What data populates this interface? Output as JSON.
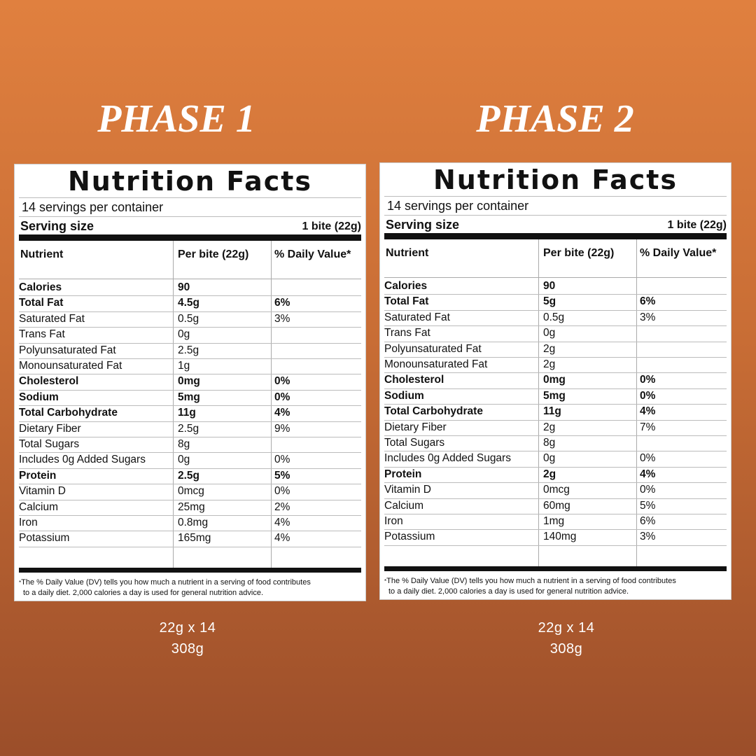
{
  "panels": [
    {
      "title": "PHASE 1",
      "label": {
        "heading": "Nutrition Facts",
        "servings": "14 servings per container",
        "serving_size_label": "Serving size",
        "serving_size_value": "1 bite (22g)",
        "columns": [
          "Nutrient",
          "Per bite (22g)",
          "% Daily Value*"
        ],
        "rows": [
          {
            "name": "Calories",
            "amount": "90",
            "dv": null,
            "bold": true
          },
          {
            "name": "Total Fat",
            "amount": "4.5g",
            "dv": "6%",
            "bold": true
          },
          {
            "name": "Saturated Fat",
            "amount": "0.5g",
            "dv": "3%",
            "bold": false
          },
          {
            "name": "Trans Fat",
            "amount": "0g",
            "dv": null,
            "bold": false
          },
          {
            "name": "Polyunsaturated Fat",
            "amount": "2.5g",
            "dv": null,
            "bold": false
          },
          {
            "name": "Monounsaturated Fat",
            "amount": "1g",
            "dv": null,
            "bold": false
          },
          {
            "name": "Cholesterol",
            "amount": "0mg",
            "dv": "0%",
            "bold": true
          },
          {
            "name": "Sodium",
            "amount": "5mg",
            "dv": "0%",
            "bold": true
          },
          {
            "name": "Total Carbohydrate",
            "amount": "11g",
            "dv": "4%",
            "bold": true
          },
          {
            "name": "Dietary Fiber",
            "amount": "2.5g",
            "dv": "9%",
            "bold": false
          },
          {
            "name": "Total Sugars",
            "amount": "8g",
            "dv": null,
            "bold": false
          },
          {
            "name": "Includes 0g Added Sugars",
            "amount": "0g",
            "dv": "0%",
            "bold": false
          },
          {
            "name": "Protein",
            "amount": "2.5g",
            "dv": "5%",
            "bold": true
          },
          {
            "name": "Vitamin D",
            "amount": "0mcg",
            "dv": "0%",
            "bold": false
          },
          {
            "name": "Calcium",
            "amount": "25mg",
            "dv": "2%",
            "bold": false
          },
          {
            "name": "Iron",
            "amount": "0.8mg",
            "dv": "4%",
            "bold": false
          },
          {
            "name": "Potassium",
            "amount": "165mg",
            "dv": "4%",
            "bold": false
          }
        ],
        "footnote": [
          "The % Daily Value (DV) tells you how much a nutrient in a serving of food contributes",
          "to a daily diet. 2,000 calories a day is used for general nutrition advice."
        ]
      },
      "weight": [
        "22g x 14",
        "308g"
      ]
    },
    {
      "title": "PHASE 2",
      "label": {
        "heading": "Nutrition Facts",
        "servings": "14 servings per container",
        "serving_size_label": "Serving size",
        "serving_size_value": "1 bite (22g)",
        "columns": [
          "Nutrient",
          "Per bite (22g)",
          "% Daily Value*"
        ],
        "rows": [
          {
            "name": "Calories",
            "amount": "90",
            "dv": null,
            "bold": true
          },
          {
            "name": "Total Fat",
            "amount": "5g",
            "dv": "6%",
            "bold": true
          },
          {
            "name": "Saturated Fat",
            "amount": "0.5g",
            "dv": "3%",
            "bold": false
          },
          {
            "name": "Trans Fat",
            "amount": "0g",
            "dv": null,
            "bold": false
          },
          {
            "name": "Polyunsaturated Fat",
            "amount": "2g",
            "dv": null,
            "bold": false
          },
          {
            "name": "Monounsaturated Fat",
            "amount": "2g",
            "dv": null,
            "bold": false
          },
          {
            "name": "Cholesterol",
            "amount": "0mg",
            "dv": "0%",
            "bold": true
          },
          {
            "name": "Sodium",
            "amount": "5mg",
            "dv": "0%",
            "bold": true
          },
          {
            "name": "Total Carbohydrate",
            "amount": "11g",
            "dv": "4%",
            "bold": true
          },
          {
            "name": "Dietary Fiber",
            "amount": "2g",
            "dv": "7%",
            "bold": false
          },
          {
            "name": "Total Sugars",
            "amount": "8g",
            "dv": null,
            "bold": false
          },
          {
            "name": "Includes 0g Added Sugars",
            "amount": "0g",
            "dv": "0%",
            "bold": false
          },
          {
            "name": "Protein",
            "amount": "2g",
            "dv": "4%",
            "bold": true
          },
          {
            "name": "Vitamin D",
            "amount": "0mcg",
            "dv": "0%",
            "bold": false
          },
          {
            "name": "Calcium",
            "amount": "60mg",
            "dv": "5%",
            "bold": false
          },
          {
            "name": "Iron",
            "amount": "1mg",
            "dv": "6%",
            "bold": false
          },
          {
            "name": "Potassium",
            "amount": "140mg",
            "dv": "3%",
            "bold": false
          }
        ],
        "footnote": [
          "The % Daily Value (DV) tells you how much a nutrient in a serving of food contributes",
          "to a daily diet. 2,000 calories a day is used for general nutrition advice."
        ]
      },
      "weight": [
        "22g x 14",
        "308g"
      ]
    }
  ]
}
